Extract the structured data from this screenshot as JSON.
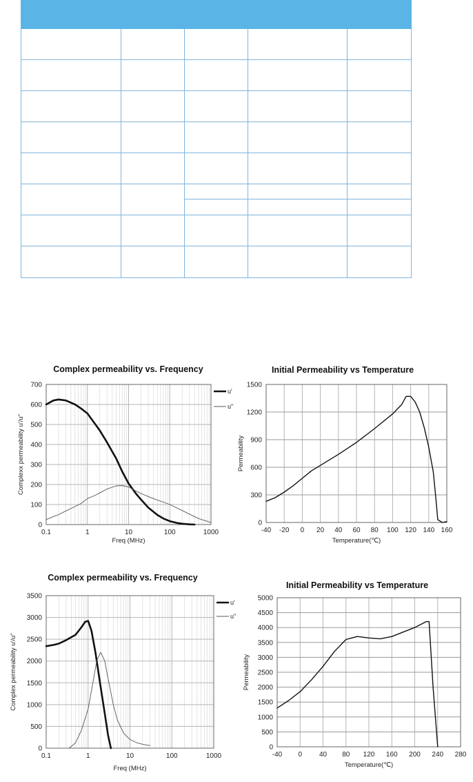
{
  "table": {
    "col_widths": [
      145,
      92,
      92,
      144,
      93
    ],
    "rows": 9
  },
  "chart_data": [
    {
      "id": "c1",
      "type": "line",
      "title": "Complex permeability vs. Frequency",
      "xlabel": "Freq (MHz)",
      "ylabel": "Complexx permeability u'/u\"",
      "xscale": "log",
      "xlim": [
        0.1,
        1000
      ],
      "ylim": [
        0,
        700
      ],
      "xticks": [
        "0.1",
        "1",
        "10",
        "100",
        "1000"
      ],
      "yticks": [
        "0",
        "100",
        "200",
        "300",
        "400",
        "500",
        "600",
        "700"
      ],
      "grid": true,
      "legend": "top-right outside",
      "series": [
        {
          "name": "u'",
          "style": "bold",
          "x": [
            0.1,
            0.15,
            0.2,
            0.3,
            0.5,
            0.7,
            1,
            1.5,
            2,
            3,
            5,
            7,
            10,
            15,
            20,
            30,
            50,
            70,
            100,
            150,
            200,
            300,
            400
          ],
          "y": [
            600,
            620,
            625,
            620,
            600,
            580,
            555,
            505,
            470,
            410,
            330,
            265,
            205,
            155,
            125,
            85,
            48,
            30,
            17,
            8,
            4,
            1,
            0
          ]
        },
        {
          "name": "u\"",
          "style": "thin",
          "x": [
            0.1,
            0.15,
            0.2,
            0.3,
            0.5,
            0.7,
            1,
            1.5,
            2,
            3,
            5,
            7,
            10,
            15,
            20,
            30,
            50,
            70,
            100,
            200,
            500,
            1000
          ],
          "y": [
            25,
            40,
            50,
            68,
            90,
            105,
            130,
            145,
            158,
            178,
            193,
            195,
            188,
            168,
            155,
            140,
            122,
            112,
            100,
            70,
            30,
            10
          ]
        }
      ]
    },
    {
      "id": "c2",
      "type": "line",
      "title": "Initial Permeability vs Temperature",
      "xlabel": "Temperature(℃)",
      "ylabel": "Permeability",
      "xscale": "linear",
      "xlim": [
        -40,
        160
      ],
      "ylim": [
        0,
        1500
      ],
      "xticks": [
        "-40",
        "-20",
        "0",
        "20",
        "40",
        "60",
        "80",
        "100",
        "120",
        "140",
        "160"
      ],
      "yticks": [
        "0",
        "300",
        "600",
        "900",
        "1200",
        "1500"
      ],
      "grid": true,
      "series": [
        {
          "name": "",
          "style": "normal",
          "x": [
            -40,
            -30,
            -20,
            -10,
            0,
            10,
            20,
            40,
            60,
            80,
            100,
            110,
            115,
            120,
            125,
            130,
            135,
            140,
            145,
            148,
            150,
            155,
            160
          ],
          "y": [
            230,
            270,
            330,
            400,
            480,
            560,
            620,
            740,
            870,
            1020,
            1180,
            1280,
            1370,
            1370,
            1310,
            1200,
            1030,
            820,
            550,
            250,
            30,
            0,
            10
          ]
        }
      ]
    },
    {
      "id": "c3",
      "type": "line",
      "title": "Complex permeability vs. Frequency",
      "xlabel": "Freq (MHz)",
      "ylabel": "Complex permeability u'/u\"",
      "xscale": "log",
      "xlim": [
        0.1,
        1000
      ],
      "ylim": [
        0,
        3500
      ],
      "xticks": [
        "0.1",
        "1",
        "10",
        "100",
        "1000"
      ],
      "yticks": [
        "0",
        "500",
        "1000",
        "1500",
        "2000",
        "2500",
        "3000",
        "3500"
      ],
      "grid": true,
      "legend": "top-right outside",
      "series": [
        {
          "name": "u'",
          "style": "bold",
          "x": [
            0.1,
            0.15,
            0.2,
            0.3,
            0.5,
            0.7,
            0.85,
            1,
            1.2,
            1.5,
            2,
            2.5,
            3,
            3.5
          ],
          "y": [
            2340,
            2370,
            2400,
            2480,
            2600,
            2780,
            2900,
            2920,
            2700,
            2200,
            1400,
            800,
            300,
            0
          ]
        },
        {
          "name": "u\"",
          "style": "thin",
          "x": [
            0.35,
            0.5,
            0.7,
            1,
            1.3,
            1.6,
            2,
            2.5,
            3,
            4,
            5,
            7,
            10,
            15,
            20,
            30
          ],
          "y": [
            0,
            120,
            420,
            900,
            1500,
            2000,
            2200,
            2000,
            1600,
            1000,
            650,
            350,
            200,
            120,
            90,
            60
          ]
        }
      ]
    },
    {
      "id": "c4",
      "type": "line",
      "title": "Initial Permeability vs Temperature",
      "xlabel": "Temperature(℃)",
      "ylabel": "Permeability",
      "xscale": "linear",
      "xlim": [
        -40,
        280
      ],
      "ylim": [
        0,
        5000
      ],
      "xticks": [
        "-40",
        "0",
        "40",
        "80",
        "120",
        "160",
        "200",
        "240",
        "280"
      ],
      "yticks": [
        "0",
        "500",
        "1000",
        "1500",
        "2000",
        "2500",
        "3000",
        "3500",
        "4000",
        "4500",
        "5000"
      ],
      "grid": true,
      "series": [
        {
          "name": "",
          "style": "normal",
          "x": [
            -40,
            -20,
            0,
            20,
            40,
            60,
            80,
            100,
            120,
            140,
            160,
            180,
            200,
            220,
            225,
            232,
            240
          ],
          "y": [
            1300,
            1550,
            1850,
            2250,
            2700,
            3200,
            3600,
            3700,
            3650,
            3620,
            3700,
            3850,
            4000,
            4200,
            4200,
            2000,
            0
          ]
        }
      ]
    }
  ]
}
